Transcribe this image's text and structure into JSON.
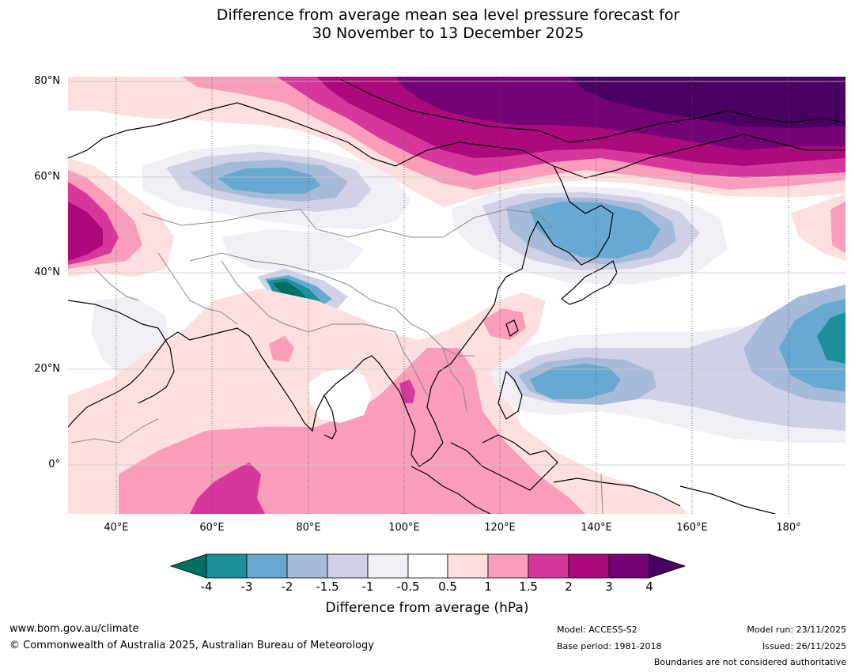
{
  "title": {
    "line1": "Difference from average mean sea level pressure forecast for",
    "line2": "30 November to 13 December 2025"
  },
  "map": {
    "lat_labels": [
      "80°N",
      "60°N",
      "40°N",
      "20°N",
      "0°"
    ],
    "lon_labels": [
      "40°E",
      "60°E",
      "80°E",
      "100°E",
      "120°E",
      "140°E",
      "160°E",
      "180°"
    ],
    "regions": [
      {
        "name": "arctic-siberia-high-anomaly",
        "level": "4",
        "color": "#4a0062"
      },
      {
        "name": "mongolia-northeast-china-low-anomaly",
        "level": "-3",
        "color": "#67a9d1"
      },
      {
        "name": "western-siberia-low-anomaly",
        "level": "-3",
        "color": "#67a9d1"
      },
      {
        "name": "tibetan-plateau-low-anomaly",
        "level": "-4",
        "color": "#006e60"
      },
      {
        "name": "western-pacific-low-anomaly",
        "level": "-3",
        "color": "#67a9d1"
      },
      {
        "name": "central-pacific-low-anomaly",
        "level": "-4",
        "color": "#1b8f9a"
      },
      {
        "name": "indian-ocean-high-anomaly",
        "level": "1.5",
        "color": "#d7379d"
      },
      {
        "name": "europe-high-anomaly",
        "level": "3",
        "color": "#ac0a7c"
      }
    ]
  },
  "colorbar": {
    "ticks": [
      "-4",
      "-3",
      "-2",
      "-1.5",
      "-1",
      "-0.5",
      "0.5",
      "1",
      "1.5",
      "2",
      "3",
      "4"
    ],
    "colors": [
      "#006e60",
      "#1b8f9a",
      "#67a9d1",
      "#a6bbd9",
      "#d0d1e6",
      "#f1eef6",
      "#ffffff",
      "#fddfdf",
      "#f99dba",
      "#d7379d",
      "#ac0a7c",
      "#760376",
      "#4a0062"
    ],
    "label": "Difference from average (hPa)"
  },
  "footer": {
    "website": "www.bom.gov.au/climate",
    "copyright": "© Commonwealth of Australia 2025, Australian Bureau of Meteorology",
    "model": "Model: ACCESS-S2",
    "base_period": "Base period: 1981-2018",
    "model_run": "Model run: 23/11/2025",
    "issued": "Issued: 26/11/2025",
    "disclaimer": "Boundaries are not considered authoritative"
  }
}
